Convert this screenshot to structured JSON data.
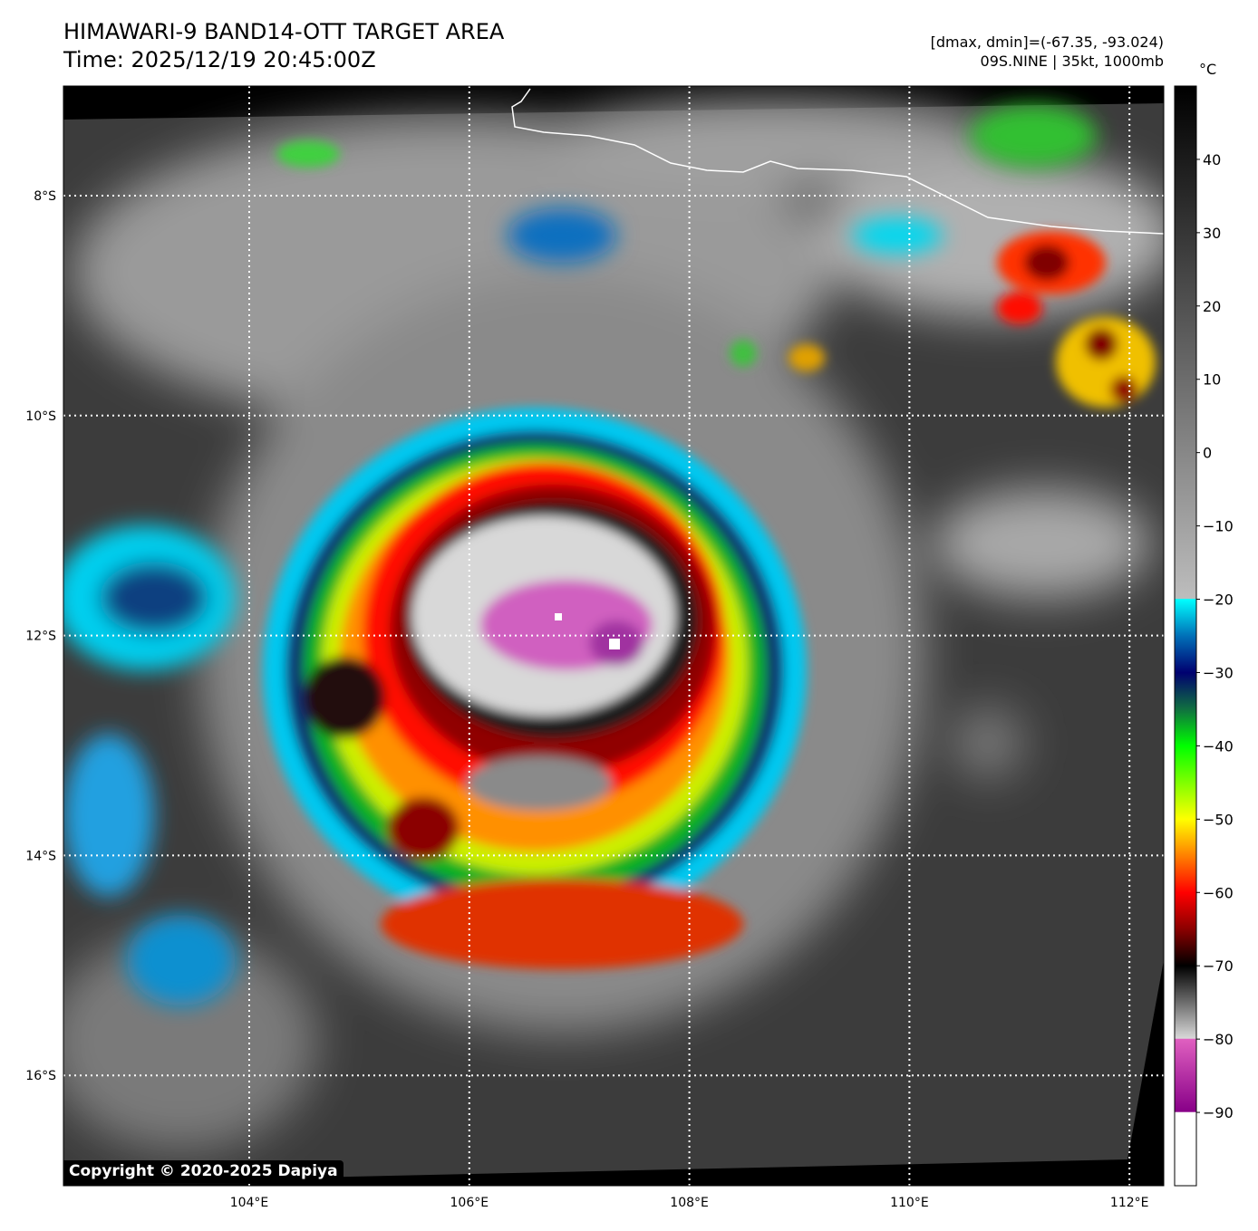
{
  "header": {
    "title": "HIMAWARI-9 BAND14-OTT TARGET AREA",
    "time": "Time: 2025/12/19 20:45:00Z",
    "range": "[dmax, dmin]=(-67.35, -93.024)",
    "storm": "09S.NINE | 35kt, 1000mb"
  },
  "colorbar": {
    "unit": "°C",
    "min": -100,
    "max": 50,
    "ticks": [
      40,
      30,
      20,
      10,
      0,
      -10,
      -20,
      -30,
      -40,
      -50,
      -60,
      -70,
      -80,
      -90
    ],
    "tick_labels": [
      "40",
      "30",
      "20",
      "10",
      "0",
      "−10",
      "−20",
      "−30",
      "−40",
      "−50",
      "−60",
      "−70",
      "−80",
      "−90"
    ],
    "stops": [
      {
        "v": 50,
        "c": "#000000"
      },
      {
        "v": -19.9,
        "c": "#bdbdbd"
      },
      {
        "v": -20,
        "c": "#00ffff"
      },
      {
        "v": -25,
        "c": "#0070b8"
      },
      {
        "v": -30,
        "c": "#000070"
      },
      {
        "v": -35,
        "c": "#107040"
      },
      {
        "v": -40,
        "c": "#00ff00"
      },
      {
        "v": -50,
        "c": "#ffff00"
      },
      {
        "v": -55,
        "c": "#ff8000"
      },
      {
        "v": -60,
        "c": "#ff0000"
      },
      {
        "v": -65,
        "c": "#8b0000"
      },
      {
        "v": -70,
        "c": "#000000"
      },
      {
        "v": -79.9,
        "c": "#d8d8d8"
      },
      {
        "v": -80,
        "c": "#e060c0"
      },
      {
        "v": -89.9,
        "c": "#880088"
      },
      {
        "v": -90,
        "c": "#ffffff"
      },
      {
        "v": -100,
        "c": "#ffffff"
      }
    ]
  },
  "axes": {
    "lon_ticks": [
      104,
      106,
      108,
      110,
      112
    ],
    "lon_labels": [
      "104°E",
      "106°E",
      "108°E",
      "110°E",
      "112°E"
    ],
    "lat_ticks": [
      8,
      10,
      12,
      14,
      16
    ],
    "lat_labels": [
      "8°S",
      "10°S",
      "12°S",
      "14°S",
      "16°S"
    ]
  },
  "copyright": "Copyright © 2020-2025 Dapiya"
}
